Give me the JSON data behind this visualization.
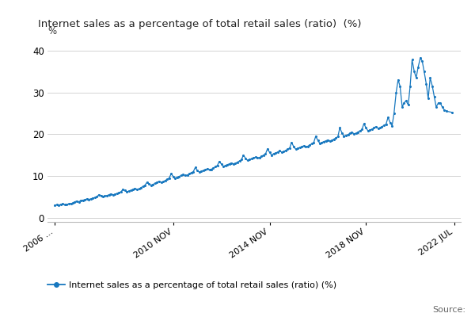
{
  "title": "Internet sales as a percentage of total retail sales (ratio)  (%)",
  "ylabel": "%",
  "legend_label": "Internet sales as a percentage of total retail sales (ratio) (%)",
  "line_color": "#1878bf",
  "marker_color": "#1878bf",
  "background_color": "#ffffff",
  "grid_color": "#cccccc",
  "source_text": "Source:",
  "ylim": [
    -1,
    43
  ],
  "yticks": [
    0,
    10,
    20,
    30,
    40
  ],
  "xtick_labels": [
    "2006 ...",
    "2010 NOV",
    "2014 NOV",
    "2018 NOV",
    "2022 JUL"
  ],
  "xtick_positions": [
    2006.0,
    2010.92,
    2014.92,
    2018.92,
    2022.58
  ],
  "xlim": [
    2005.7,
    2022.85
  ],
  "data": {
    "dates": [
      2006.0,
      2006.08,
      2006.17,
      2006.25,
      2006.33,
      2006.42,
      2006.5,
      2006.58,
      2006.67,
      2006.75,
      2006.83,
      2006.92,
      2007.0,
      2007.08,
      2007.17,
      2007.25,
      2007.33,
      2007.42,
      2007.5,
      2007.58,
      2007.67,
      2007.75,
      2007.83,
      2007.92,
      2008.0,
      2008.08,
      2008.17,
      2008.25,
      2008.33,
      2008.42,
      2008.5,
      2008.58,
      2008.67,
      2008.75,
      2008.83,
      2008.92,
      2009.0,
      2009.08,
      2009.17,
      2009.25,
      2009.33,
      2009.42,
      2009.5,
      2009.58,
      2009.67,
      2009.75,
      2009.83,
      2009.92,
      2010.0,
      2010.08,
      2010.17,
      2010.25,
      2010.33,
      2010.42,
      2010.5,
      2010.58,
      2010.67,
      2010.75,
      2010.83,
      2010.92,
      2011.0,
      2011.08,
      2011.17,
      2011.25,
      2011.33,
      2011.42,
      2011.5,
      2011.58,
      2011.67,
      2011.75,
      2011.83,
      2011.92,
      2012.0,
      2012.08,
      2012.17,
      2012.25,
      2012.33,
      2012.42,
      2012.5,
      2012.58,
      2012.67,
      2012.75,
      2012.83,
      2012.92,
      2013.0,
      2013.08,
      2013.17,
      2013.25,
      2013.33,
      2013.42,
      2013.5,
      2013.58,
      2013.67,
      2013.75,
      2013.83,
      2013.92,
      2014.0,
      2014.08,
      2014.17,
      2014.25,
      2014.33,
      2014.42,
      2014.5,
      2014.58,
      2014.67,
      2014.75,
      2014.83,
      2014.92,
      2015.0,
      2015.08,
      2015.17,
      2015.25,
      2015.33,
      2015.42,
      2015.5,
      2015.58,
      2015.67,
      2015.75,
      2015.83,
      2015.92,
      2016.0,
      2016.08,
      2016.17,
      2016.25,
      2016.33,
      2016.42,
      2016.5,
      2016.58,
      2016.67,
      2016.75,
      2016.83,
      2016.92,
      2017.0,
      2017.08,
      2017.17,
      2017.25,
      2017.33,
      2017.42,
      2017.5,
      2017.58,
      2017.67,
      2017.75,
      2017.83,
      2017.92,
      2018.0,
      2018.08,
      2018.17,
      2018.25,
      2018.33,
      2018.42,
      2018.5,
      2018.58,
      2018.67,
      2018.75,
      2018.83,
      2018.92,
      2019.0,
      2019.08,
      2019.17,
      2019.25,
      2019.33,
      2019.42,
      2019.5,
      2019.58,
      2019.67,
      2019.75,
      2019.83,
      2019.92,
      2020.0,
      2020.08,
      2020.17,
      2020.25,
      2020.33,
      2020.42,
      2020.5,
      2020.58,
      2020.67,
      2020.75,
      2020.83,
      2020.92,
      2021.0,
      2021.08,
      2021.17,
      2021.25,
      2021.33,
      2021.42,
      2021.5,
      2021.58,
      2021.67,
      2021.75,
      2021.83,
      2021.92,
      2022.0,
      2022.08,
      2022.17,
      2022.25,
      2022.5
    ],
    "values": [
      3.0,
      3.1,
      3.0,
      3.2,
      3.3,
      3.1,
      3.2,
      3.3,
      3.4,
      3.5,
      3.8,
      4.0,
      3.8,
      4.1,
      4.2,
      4.3,
      4.5,
      4.4,
      4.5,
      4.7,
      4.8,
      5.0,
      5.5,
      5.3,
      5.0,
      5.2,
      5.3,
      5.5,
      5.7,
      5.5,
      5.6,
      5.8,
      6.0,
      6.2,
      6.8,
      6.5,
      6.2,
      6.4,
      6.6,
      6.8,
      7.0,
      6.8,
      6.9,
      7.2,
      7.5,
      7.8,
      8.5,
      8.1,
      7.8,
      8.0,
      8.2,
      8.5,
      8.7,
      8.5,
      8.6,
      8.9,
      9.2,
      9.5,
      10.5,
      9.9,
      9.5,
      9.7,
      9.9,
      10.1,
      10.3,
      10.1,
      10.2,
      10.5,
      10.8,
      11.0,
      12.0,
      11.3,
      10.9,
      11.1,
      11.3,
      11.5,
      11.7,
      11.5,
      11.6,
      11.9,
      12.2,
      12.5,
      13.5,
      12.8,
      12.3,
      12.5,
      12.7,
      12.9,
      13.1,
      12.9,
      13.0,
      13.3,
      13.6,
      13.9,
      15.0,
      14.2,
      13.7,
      13.9,
      14.1,
      14.3,
      14.5,
      14.3,
      14.4,
      14.7,
      15.0,
      15.3,
      16.5,
      15.6,
      15.0,
      15.3,
      15.5,
      15.7,
      16.0,
      15.7,
      15.8,
      16.1,
      16.4,
      16.7,
      18.0,
      17.0,
      16.4,
      16.6,
      16.8,
      17.0,
      17.2,
      17.0,
      17.1,
      17.4,
      17.7,
      18.0,
      19.5,
      18.5,
      17.8,
      18.0,
      18.2,
      18.4,
      18.6,
      18.4,
      18.5,
      18.8,
      19.1,
      19.4,
      21.5,
      20.3,
      19.5,
      19.7,
      19.9,
      20.2,
      20.5,
      20.1,
      20.2,
      20.5,
      20.8,
      21.1,
      22.5,
      21.5,
      20.8,
      21.0,
      21.2,
      21.5,
      21.8,
      21.4,
      21.5,
      21.8,
      22.1,
      22.4,
      24.0,
      22.8,
      22.0,
      25.0,
      30.0,
      33.0,
      31.5,
      26.5,
      27.5,
      28.0,
      27.0,
      31.5,
      37.8,
      35.0,
      33.5,
      36.0,
      38.2,
      37.5,
      35.0,
      32.0,
      28.5,
      33.5,
      31.5,
      29.0,
      26.5,
      27.5,
      27.5,
      26.5,
      25.8,
      25.5,
      25.2
    ]
  }
}
